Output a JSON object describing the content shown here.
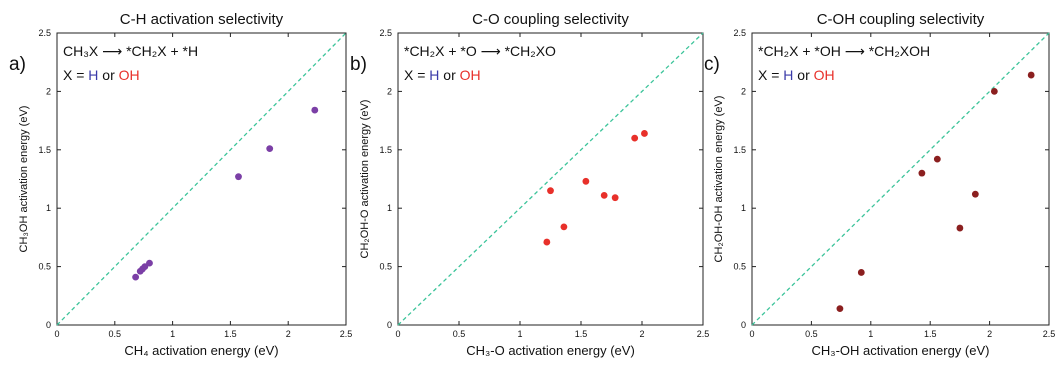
{
  "colors": {
    "diagonal": "#3cc49a",
    "h": "#3a3aa8",
    "oh": "#e8302a"
  },
  "chart_data": [
    {
      "type": "scatter",
      "title": "C-H activation selectivity",
      "panel_label": "a)",
      "xlabel": "CH₄  activation energy (eV)",
      "ylabel": "CH₃OH activation energy (eV)",
      "xlim": [
        0,
        2.5
      ],
      "ylim": [
        0,
        2.5
      ],
      "xticks": [
        "0",
        "0.5",
        "1",
        "1.5",
        "2",
        "2.5"
      ],
      "yticks": [
        "0",
        "0.5",
        "1",
        "1.5",
        "2",
        "2.5"
      ],
      "reaction": "CH₃X ⟶ *CH₂X + *H",
      "x_eq": {
        "prefix": "X = ",
        "h": "H",
        "mid": " or ",
        "oh": "OH"
      },
      "diagonal": true,
      "marker_color": "#7b3fa6",
      "points": [
        {
          "x": 0.68,
          "y": 0.41
        },
        {
          "x": 0.72,
          "y": 0.46
        },
        {
          "x": 0.74,
          "y": 0.48
        },
        {
          "x": 0.76,
          "y": 0.5
        },
        {
          "x": 0.8,
          "y": 0.53
        },
        {
          "x": 1.57,
          "y": 1.27
        },
        {
          "x": 1.84,
          "y": 1.51
        },
        {
          "x": 2.23,
          "y": 1.84
        }
      ]
    },
    {
      "type": "scatter",
      "title": "C-O coupling selectivity",
      "panel_label": "b)",
      "xlabel": "CH₃-O activation energy (eV)",
      "ylabel": "CH₂OH-O activation energy (eV)",
      "xlim": [
        0,
        2.5
      ],
      "ylim": [
        0,
        2.5
      ],
      "xticks": [
        "0",
        "0.5",
        "1",
        "1.5",
        "2",
        "2.5"
      ],
      "yticks": [
        "0",
        "0.5",
        "1",
        "1.5",
        "2",
        "2.5"
      ],
      "reaction": "*CH₂X + *O ⟶ *CH₂XO",
      "x_eq": {
        "prefix": "X = ",
        "h": "H",
        "mid": " or ",
        "oh": "OH"
      },
      "diagonal": true,
      "marker_color": "#e8302a",
      "points": [
        {
          "x": 1.22,
          "y": 0.71
        },
        {
          "x": 1.25,
          "y": 1.15
        },
        {
          "x": 1.36,
          "y": 0.84
        },
        {
          "x": 1.54,
          "y": 1.23
        },
        {
          "x": 1.69,
          "y": 1.11
        },
        {
          "x": 1.78,
          "y": 1.09
        },
        {
          "x": 1.94,
          "y": 1.6
        },
        {
          "x": 2.02,
          "y": 1.64
        }
      ]
    },
    {
      "type": "scatter",
      "title": "C-OH coupling selectivity",
      "panel_label": "c)",
      "xlabel": "CH₃-OH activation energy (eV)",
      "ylabel": "CH₂OH-OH activation energy (eV)",
      "xlim": [
        0,
        2.5
      ],
      "ylim": [
        0,
        2.5
      ],
      "xticks": [
        "0",
        "0.5",
        "1",
        "1.5",
        "2",
        "2.5"
      ],
      "yticks": [
        "0",
        "0.5",
        "1",
        "1.5",
        "2",
        "2.5"
      ],
      "reaction": "*CH₂X + *OH ⟶ *CH₂XOH",
      "x_eq": {
        "prefix": "X = ",
        "h": "H",
        "mid": " or ",
        "oh": "OH"
      },
      "diagonal": true,
      "marker_color": "#8b1f1f",
      "points": [
        {
          "x": 0.74,
          "y": 0.14
        },
        {
          "x": 0.92,
          "y": 0.45
        },
        {
          "x": 1.43,
          "y": 1.3
        },
        {
          "x": 1.56,
          "y": 1.42
        },
        {
          "x": 1.75,
          "y": 0.83
        },
        {
          "x": 1.88,
          "y": 1.12
        },
        {
          "x": 2.04,
          "y": 2.0
        },
        {
          "x": 2.35,
          "y": 2.14
        }
      ]
    }
  ]
}
